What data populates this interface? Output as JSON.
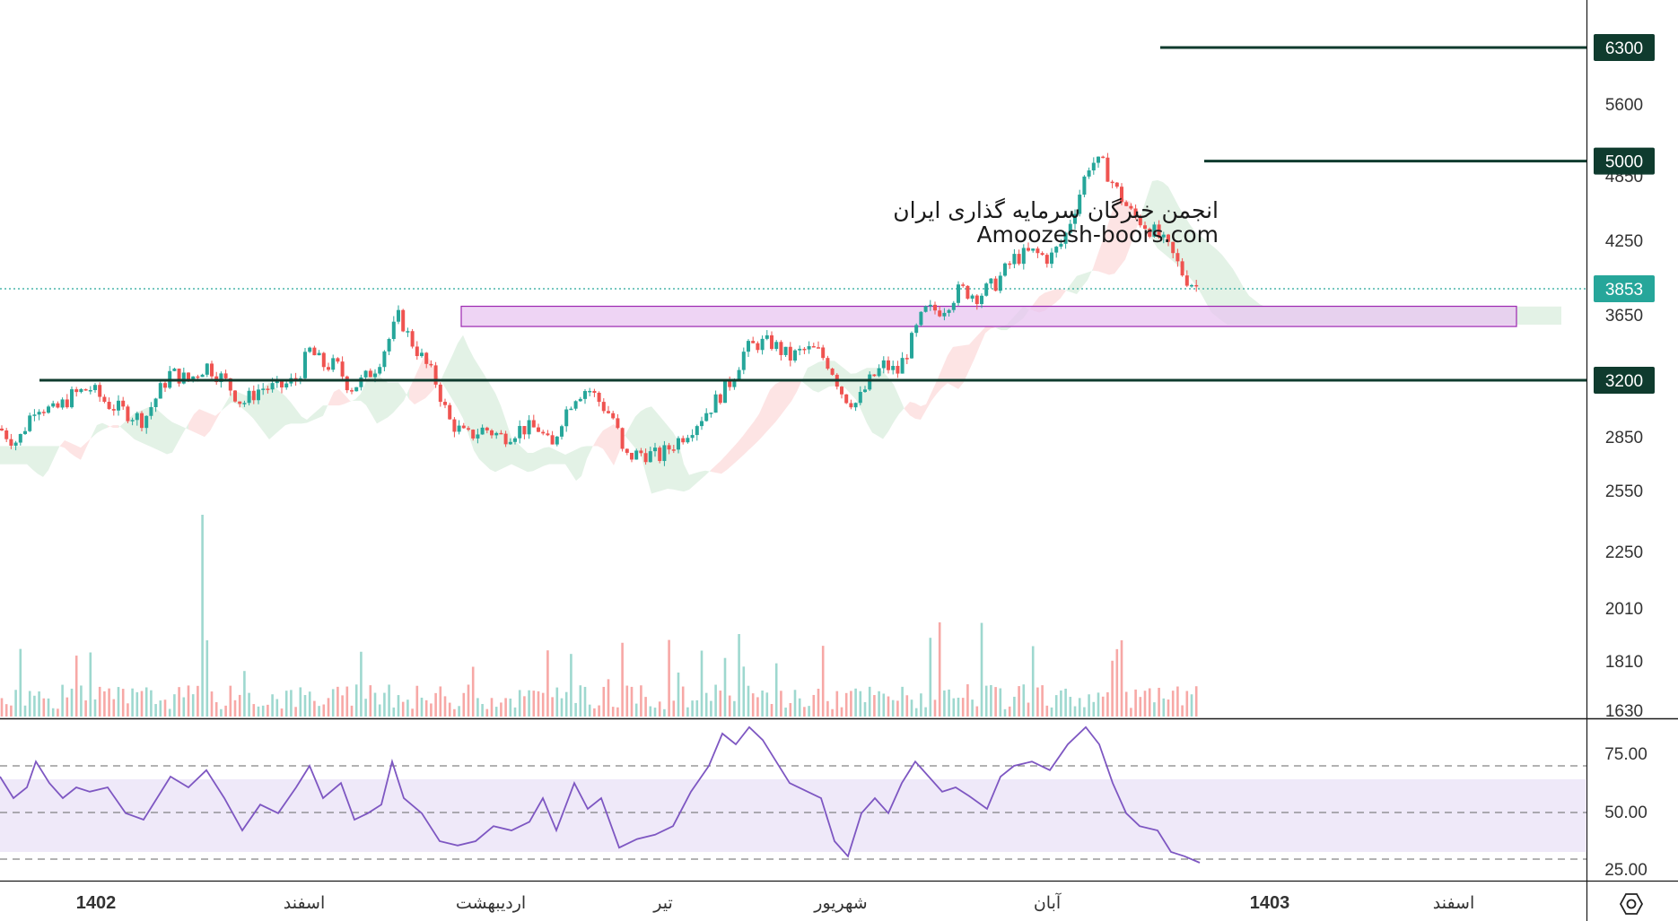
{
  "watermark": {
    "line1": "انجمن خبرگان سرمایه گذاری ایران",
    "line2": "Amoozesh-boors.com"
  },
  "colors": {
    "up": "#26a69a",
    "down": "#ef5350",
    "level_line": "#0f3b2e",
    "tag_bg": "#0f3b2e",
    "zone_fill": "#e8c6f0",
    "zone_stroke": "#9c27b0",
    "rsi_line": "#7e57c2",
    "rsi_band": "#efe9f9",
    "cloud_green": "#e3f2e6",
    "cloud_red": "#fde4e4",
    "last_price": "#26a69a"
  },
  "settings_icon": "gear-hexagon-icon",
  "chart_data": {
    "type": "candlestick",
    "price_axis": {
      "ticks": [
        "6300",
        "5600",
        "4850",
        "4250",
        "3650",
        "2850",
        "2550",
        "2250",
        "2010",
        "1810",
        "1630"
      ],
      "tick_values": [
        6300,
        5600,
        4850,
        4250,
        3650,
        2850,
        2550,
        2250,
        2010,
        1810,
        1630
      ],
      "scale": "log"
    },
    "levels": [
      {
        "value": 6300,
        "label": "6300"
      },
      {
        "value": 5000,
        "label": "5000"
      },
      {
        "value": 3200,
        "label": "3200"
      }
    ],
    "last_price": {
      "value": 3853,
      "label": "3853"
    },
    "zone": {
      "low": 3570,
      "high": 3720
    },
    "time_axis": {
      "labels": [
        "1402",
        "اسفند",
        "اردیبهشت",
        "تیر",
        "شهریور",
        "آبان",
        "1403",
        "اسفند"
      ],
      "bold": [
        true,
        false,
        false,
        false,
        false,
        false,
        true,
        false
      ]
    },
    "price_path": [
      [
        0,
        2900
      ],
      [
        10,
        2850
      ],
      [
        20,
        2820
      ],
      [
        40,
        3050
      ],
      [
        60,
        3000
      ],
      [
        80,
        3100
      ],
      [
        100,
        3150
      ],
      [
        120,
        3050
      ],
      [
        140,
        3000
      ],
      [
        160,
        2950
      ],
      [
        175,
        3100
      ],
      [
        190,
        3250
      ],
      [
        210,
        3200
      ],
      [
        230,
        3300
      ],
      [
        250,
        3200
      ],
      [
        270,
        3050
      ],
      [
        290,
        3150
      ],
      [
        310,
        3150
      ],
      [
        330,
        3200
      ],
      [
        345,
        3400
      ],
      [
        360,
        3300
      ],
      [
        375,
        3300
      ],
      [
        390,
        3150
      ],
      [
        405,
        3200
      ],
      [
        420,
        3300
      ],
      [
        435,
        3500
      ],
      [
        445,
        3650
      ],
      [
        455,
        3500
      ],
      [
        470,
        3350
      ],
      [
        485,
        3200
      ],
      [
        500,
        2950
      ],
      [
        520,
        2850
      ],
      [
        540,
        2900
      ],
      [
        560,
        2850
      ],
      [
        580,
        2900
      ],
      [
        600,
        2900
      ],
      [
        615,
        2780
      ],
      [
        625,
        2950
      ],
      [
        640,
        3100
      ],
      [
        655,
        3150
      ],
      [
        670,
        3050
      ],
      [
        685,
        2950
      ],
      [
        695,
        2730
      ],
      [
        715,
        2760
      ],
      [
        735,
        2740
      ],
      [
        755,
        2830
      ],
      [
        775,
        2930
      ],
      [
        795,
        3050
      ],
      [
        815,
        3200
      ],
      [
        830,
        3400
      ],
      [
        845,
        3450
      ],
      [
        860,
        3450
      ],
      [
        880,
        3350
      ],
      [
        895,
        3400
      ],
      [
        910,
        3400
      ],
      [
        925,
        3300
      ],
      [
        940,
        3100
      ],
      [
        955,
        3050
      ],
      [
        970,
        3200
      ],
      [
        985,
        3300
      ],
      [
        1000,
        3250
      ],
      [
        1015,
        3450
      ],
      [
        1030,
        3680
      ],
      [
        1050,
        3700
      ],
      [
        1070,
        3850
      ],
      [
        1090,
        3800
      ],
      [
        1110,
        3900
      ],
      [
        1130,
        4100
      ],
      [
        1150,
        4150
      ],
      [
        1170,
        4100
      ],
      [
        1185,
        4250
      ],
      [
        1200,
        4600
      ],
      [
        1215,
        5000
      ],
      [
        1230,
        4950
      ],
      [
        1245,
        4700
      ],
      [
        1260,
        4500
      ],
      [
        1275,
        4400
      ],
      [
        1290,
        4300
      ],
      [
        1305,
        4150
      ],
      [
        1320,
        3950
      ],
      [
        1337,
        3853
      ]
    ],
    "rsi": {
      "axis_ticks": [
        "75.00",
        "50.00",
        "25.00"
      ],
      "tick_values": [
        75,
        50,
        25
      ],
      "band": [
        30,
        70
      ],
      "path": [
        [
          0,
          65
        ],
        [
          15,
          55
        ],
        [
          30,
          60
        ],
        [
          40,
          72
        ],
        [
          55,
          62
        ],
        [
          70,
          55
        ],
        [
          85,
          60
        ],
        [
          100,
          58
        ],
        [
          120,
          60
        ],
        [
          140,
          48
        ],
        [
          160,
          45
        ],
        [
          175,
          55
        ],
        [
          190,
          65
        ],
        [
          210,
          60
        ],
        [
          230,
          68
        ],
        [
          250,
          55
        ],
        [
          270,
          40
        ],
        [
          290,
          52
        ],
        [
          310,
          48
        ],
        [
          330,
          60
        ],
        [
          345,
          70
        ],
        [
          360,
          55
        ],
        [
          380,
          62
        ],
        [
          395,
          45
        ],
        [
          410,
          48
        ],
        [
          425,
          52
        ],
        [
          437,
          72
        ],
        [
          450,
          55
        ],
        [
          470,
          48
        ],
        [
          490,
          35
        ],
        [
          510,
          33
        ],
        [
          530,
          35
        ],
        [
          550,
          42
        ],
        [
          570,
          40
        ],
        [
          590,
          44
        ],
        [
          605,
          55
        ],
        [
          620,
          40
        ],
        [
          640,
          62
        ],
        [
          655,
          50
        ],
        [
          670,
          55
        ],
        [
          690,
          32
        ],
        [
          710,
          36
        ],
        [
          730,
          38
        ],
        [
          750,
          42
        ],
        [
          770,
          58
        ],
        [
          790,
          70
        ],
        [
          805,
          85
        ],
        [
          820,
          80
        ],
        [
          835,
          88
        ],
        [
          850,
          82
        ],
        [
          865,
          72
        ],
        [
          880,
          62
        ],
        [
          900,
          58
        ],
        [
          915,
          55
        ],
        [
          930,
          35
        ],
        [
          945,
          28
        ],
        [
          960,
          48
        ],
        [
          975,
          55
        ],
        [
          990,
          48
        ],
        [
          1005,
          62
        ],
        [
          1020,
          72
        ],
        [
          1035,
          65
        ],
        [
          1050,
          58
        ],
        [
          1065,
          60
        ],
        [
          1080,
          56
        ],
        [
          1100,
          50
        ],
        [
          1115,
          65
        ],
        [
          1130,
          70
        ],
        [
          1150,
          72
        ],
        [
          1170,
          68
        ],
        [
          1190,
          80
        ],
        [
          1210,
          88
        ],
        [
          1225,
          80
        ],
        [
          1240,
          62
        ],
        [
          1255,
          48
        ],
        [
          1270,
          42
        ],
        [
          1290,
          40
        ],
        [
          1305,
          30
        ],
        [
          1320,
          28
        ],
        [
          1337,
          25
        ]
      ]
    }
  }
}
